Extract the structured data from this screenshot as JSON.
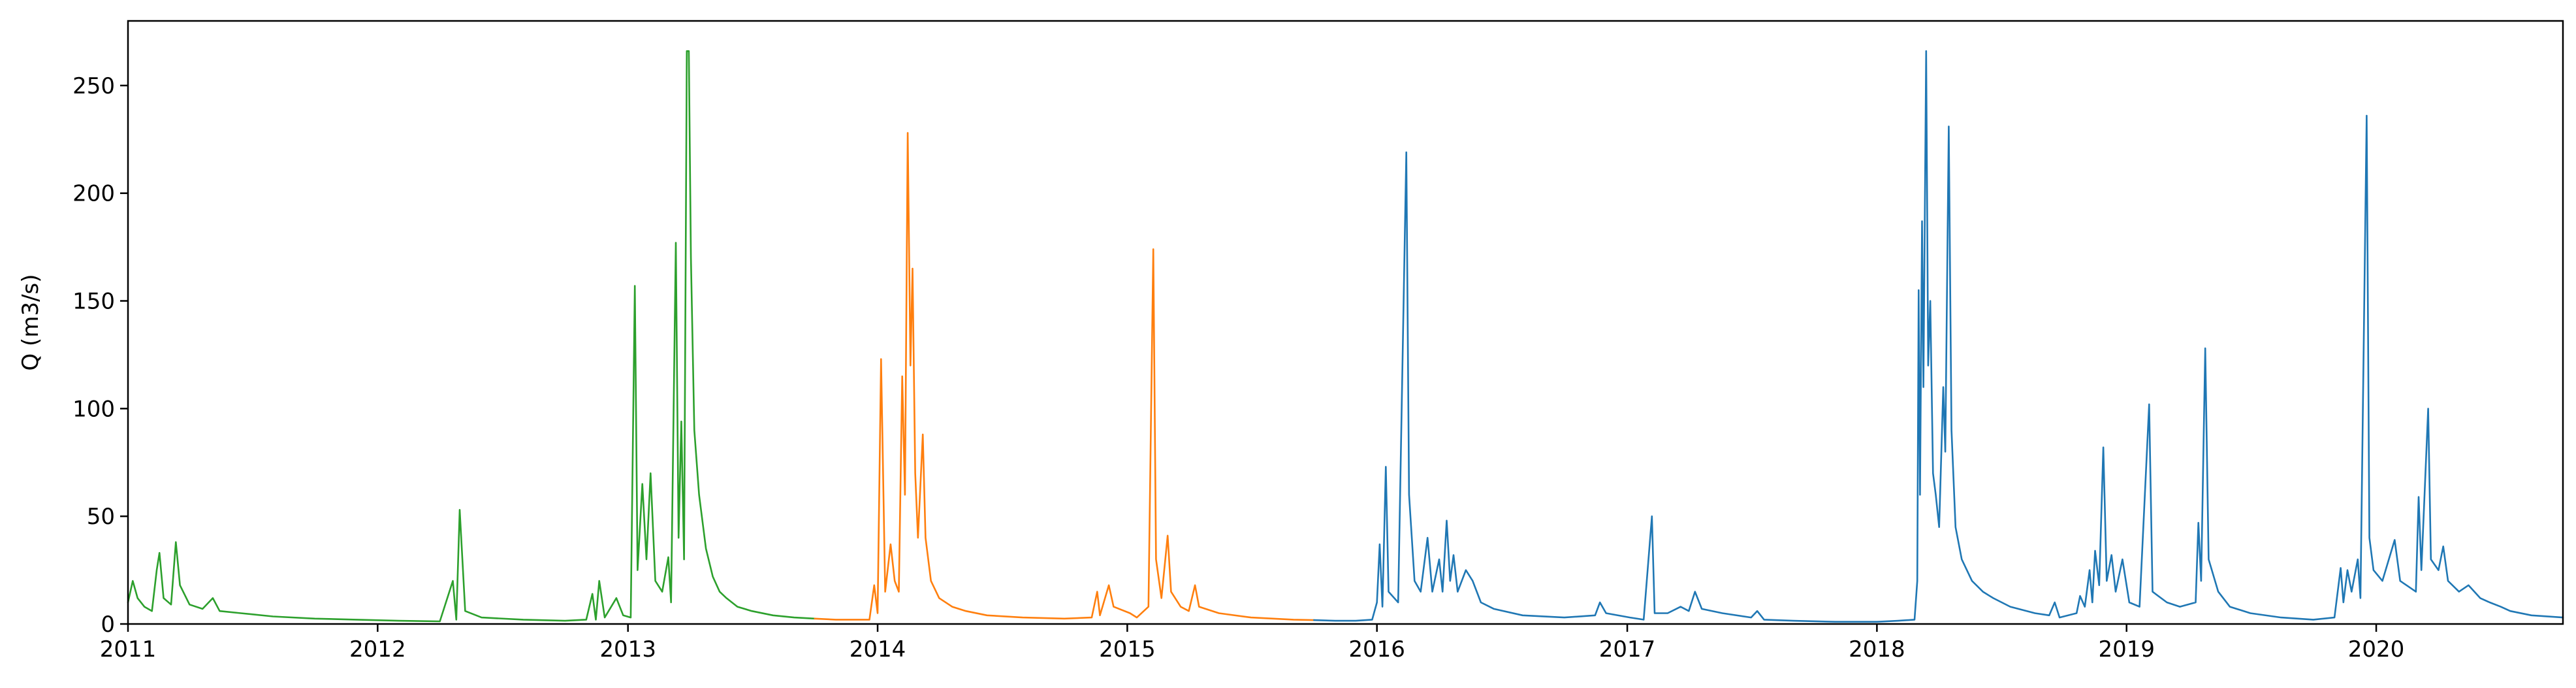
{
  "chart_data": {
    "type": "line",
    "title": "",
    "xlabel": "",
    "ylabel": "Q (m3/s)",
    "xlim": [
      "2011-01-01",
      "2020-09-30"
    ],
    "ylim": [
      0,
      280
    ],
    "grid": false,
    "legend": "none",
    "x_ticks": [
      "2011",
      "2012",
      "2013",
      "2014",
      "2015",
      "2016",
      "2017",
      "2018",
      "2019",
      "2020"
    ],
    "y_ticks": [
      0,
      50,
      100,
      150,
      200,
      250
    ],
    "series": [
      {
        "color": "#2ca02c",
        "points": [
          [
            "2011-01-01",
            10
          ],
          [
            "2011-01-08",
            20
          ],
          [
            "2011-01-15",
            12
          ],
          [
            "2011-01-25",
            8
          ],
          [
            "2011-02-05",
            6
          ],
          [
            "2011-02-12",
            25
          ],
          [
            "2011-02-16",
            33
          ],
          [
            "2011-02-22",
            12
          ],
          [
            "2011-03-05",
            9
          ],
          [
            "2011-03-12",
            38
          ],
          [
            "2011-03-18",
            18
          ],
          [
            "2011-04-01",
            9
          ],
          [
            "2011-04-20",
            7
          ],
          [
            "2011-05-05",
            12
          ],
          [
            "2011-05-15",
            6
          ],
          [
            "2011-06-15",
            5
          ],
          [
            "2011-08-01",
            3.5
          ],
          [
            "2011-10-01",
            2.5
          ],
          [
            "2011-12-01",
            2
          ],
          [
            "2012-02-01",
            1.5
          ],
          [
            "2012-04-01",
            1.2
          ],
          [
            "2012-04-20",
            20
          ],
          [
            "2012-04-25",
            2
          ],
          [
            "2012-04-30",
            53
          ],
          [
            "2012-05-08",
            6
          ],
          [
            "2012-06-01",
            3
          ],
          [
            "2012-08-01",
            2
          ],
          [
            "2012-10-01",
            1.5
          ],
          [
            "2012-11-01",
            2
          ],
          [
            "2012-11-10",
            14
          ],
          [
            "2012-11-15",
            2
          ],
          [
            "2012-11-20",
            20
          ],
          [
            "2012-11-28",
            3
          ],
          [
            "2012-12-15",
            12
          ],
          [
            "2012-12-25",
            4
          ],
          [
            "2013-01-05",
            3
          ],
          [
            "2013-01-11",
            157
          ],
          [
            "2013-01-15",
            25
          ],
          [
            "2013-01-22",
            65
          ],
          [
            "2013-01-28",
            30
          ],
          [
            "2013-02-03",
            70
          ],
          [
            "2013-02-10",
            20
          ],
          [
            "2013-02-20",
            15
          ],
          [
            "2013-03-01",
            31
          ],
          [
            "2013-03-05",
            10
          ],
          [
            "2013-03-12",
            177
          ],
          [
            "2013-03-16",
            40
          ],
          [
            "2013-03-20",
            94
          ],
          [
            "2013-03-24",
            30
          ],
          [
            "2013-03-28",
            266
          ],
          [
            "2013-03-31",
            266
          ],
          [
            "2013-04-03",
            170
          ],
          [
            "2013-04-08",
            90
          ],
          [
            "2013-04-15",
            60
          ],
          [
            "2013-04-25",
            35
          ],
          [
            "2013-05-05",
            22
          ],
          [
            "2013-05-15",
            15
          ],
          [
            "2013-05-25",
            12
          ],
          [
            "2013-06-10",
            8
          ],
          [
            "2013-07-01",
            6
          ],
          [
            "2013-08-01",
            4
          ],
          [
            "2013-09-01",
            3
          ],
          [
            "2013-10-01",
            2.5
          ]
        ]
      },
      {
        "color": "#ff7f0e",
        "points": [
          [
            "2013-10-01",
            2.5
          ],
          [
            "2013-11-01",
            2
          ],
          [
            "2013-12-01",
            2
          ],
          [
            "2013-12-20",
            2
          ],
          [
            "2013-12-27",
            18
          ],
          [
            "2014-01-01",
            5
          ],
          [
            "2014-01-06",
            123
          ],
          [
            "2014-01-12",
            15
          ],
          [
            "2014-01-20",
            37
          ],
          [
            "2014-01-26",
            20
          ],
          [
            "2014-02-01",
            15
          ],
          [
            "2014-02-06",
            115
          ],
          [
            "2014-02-10",
            60
          ],
          [
            "2014-02-14",
            228
          ],
          [
            "2014-02-18",
            120
          ],
          [
            "2014-02-21",
            165
          ],
          [
            "2014-02-25",
            70
          ],
          [
            "2014-03-01",
            40
          ],
          [
            "2014-03-08",
            88
          ],
          [
            "2014-03-12",
            40
          ],
          [
            "2014-03-20",
            20
          ],
          [
            "2014-04-01",
            12
          ],
          [
            "2014-04-20",
            8
          ],
          [
            "2014-05-10",
            6
          ],
          [
            "2014-06-10",
            4
          ],
          [
            "2014-08-01",
            3
          ],
          [
            "2014-10-01",
            2.5
          ],
          [
            "2014-11-10",
            3
          ],
          [
            "2014-11-18",
            15
          ],
          [
            "2014-11-22",
            4
          ],
          [
            "2014-12-05",
            18
          ],
          [
            "2014-12-12",
            8
          ],
          [
            "2015-01-05",
            5
          ],
          [
            "2015-01-15",
            3
          ],
          [
            "2015-02-01",
            8
          ],
          [
            "2015-02-08",
            174
          ],
          [
            "2015-02-12",
            30
          ],
          [
            "2015-02-20",
            12
          ],
          [
            "2015-03-01",
            41
          ],
          [
            "2015-03-06",
            15
          ],
          [
            "2015-03-20",
            8
          ],
          [
            "2015-04-01",
            6
          ],
          [
            "2015-04-10",
            18
          ],
          [
            "2015-04-16",
            8
          ],
          [
            "2015-05-15",
            5
          ],
          [
            "2015-07-01",
            3
          ],
          [
            "2015-09-01",
            2
          ],
          [
            "2015-10-01",
            1.8
          ]
        ]
      },
      {
        "color": "#1f77b4",
        "points": [
          [
            "2015-10-01",
            1.8
          ],
          [
            "2015-11-01",
            1.5
          ],
          [
            "2015-12-01",
            1.5
          ],
          [
            "2015-12-25",
            2
          ],
          [
            "2016-01-01",
            10
          ],
          [
            "2016-01-05",
            37
          ],
          [
            "2016-01-09",
            8
          ],
          [
            "2016-01-14",
            73
          ],
          [
            "2016-01-18",
            15
          ],
          [
            "2016-02-01",
            10
          ],
          [
            "2016-02-13",
            219
          ],
          [
            "2016-02-17",
            60
          ],
          [
            "2016-02-25",
            20
          ],
          [
            "2016-03-05",
            15
          ],
          [
            "2016-03-15",
            40
          ],
          [
            "2016-03-22",
            15
          ],
          [
            "2016-04-01",
            30
          ],
          [
            "2016-04-06",
            15
          ],
          [
            "2016-04-12",
            48
          ],
          [
            "2016-04-17",
            20
          ],
          [
            "2016-04-22",
            32
          ],
          [
            "2016-04-28",
            15
          ],
          [
            "2016-05-10",
            25
          ],
          [
            "2016-05-20",
            20
          ],
          [
            "2016-06-01",
            10
          ],
          [
            "2016-06-20",
            7
          ],
          [
            "2016-08-01",
            4
          ],
          [
            "2016-10-01",
            3
          ],
          [
            "2016-11-15",
            4
          ],
          [
            "2016-11-22",
            10
          ],
          [
            "2016-12-01",
            5
          ],
          [
            "2017-01-05",
            3
          ],
          [
            "2017-01-25",
            2
          ],
          [
            "2017-02-06",
            50
          ],
          [
            "2017-02-10",
            5
          ],
          [
            "2017-03-01",
            5
          ],
          [
            "2017-03-20",
            8
          ],
          [
            "2017-04-01",
            6
          ],
          [
            "2017-04-10",
            15
          ],
          [
            "2017-04-20",
            7
          ],
          [
            "2017-05-20",
            5
          ],
          [
            "2017-07-01",
            3
          ],
          [
            "2017-07-10",
            6
          ],
          [
            "2017-07-20",
            2
          ],
          [
            "2017-09-01",
            1.5
          ],
          [
            "2017-11-01",
            1
          ],
          [
            "2018-01-01",
            1
          ],
          [
            "2018-02-01",
            1.5
          ],
          [
            "2018-02-25",
            2
          ],
          [
            "2018-03-01",
            20
          ],
          [
            "2018-03-03",
            155
          ],
          [
            "2018-03-05",
            60
          ],
          [
            "2018-03-08",
            187
          ],
          [
            "2018-03-10",
            110
          ],
          [
            "2018-03-14",
            266
          ],
          [
            "2018-03-17",
            120
          ],
          [
            "2018-03-20",
            150
          ],
          [
            "2018-03-24",
            70
          ],
          [
            "2018-03-28",
            60
          ],
          [
            "2018-04-02",
            45
          ],
          [
            "2018-04-08",
            110
          ],
          [
            "2018-04-11",
            80
          ],
          [
            "2018-04-16",
            231
          ],
          [
            "2018-04-20",
            90
          ],
          [
            "2018-04-26",
            45
          ],
          [
            "2018-05-05",
            30
          ],
          [
            "2018-05-20",
            20
          ],
          [
            "2018-06-05",
            15
          ],
          [
            "2018-06-20",
            12
          ],
          [
            "2018-07-15",
            8
          ],
          [
            "2018-08-20",
            5
          ],
          [
            "2018-09-10",
            4
          ],
          [
            "2018-09-18",
            10
          ],
          [
            "2018-09-25",
            3
          ],
          [
            "2018-10-20",
            5
          ],
          [
            "2018-10-25",
            13
          ],
          [
            "2018-11-01",
            8
          ],
          [
            "2018-11-08",
            25
          ],
          [
            "2018-11-12",
            10
          ],
          [
            "2018-11-16",
            34
          ],
          [
            "2018-11-22",
            18
          ],
          [
            "2018-11-28",
            82
          ],
          [
            "2018-12-03",
            20
          ],
          [
            "2018-12-10",
            32
          ],
          [
            "2018-12-16",
            15
          ],
          [
            "2018-12-26",
            30
          ],
          [
            "2019-01-05",
            10
          ],
          [
            "2019-01-20",
            8
          ],
          [
            "2019-02-03",
            102
          ],
          [
            "2019-02-08",
            15
          ],
          [
            "2019-03-01",
            10
          ],
          [
            "2019-03-20",
            8
          ],
          [
            "2019-04-12",
            10
          ],
          [
            "2019-04-16",
            47
          ],
          [
            "2019-04-20",
            20
          ],
          [
            "2019-04-26",
            128
          ],
          [
            "2019-05-01",
            30
          ],
          [
            "2019-05-15",
            15
          ],
          [
            "2019-06-01",
            8
          ],
          [
            "2019-07-01",
            5
          ],
          [
            "2019-08-15",
            3
          ],
          [
            "2019-10-01",
            2
          ],
          [
            "2019-11-01",
            3
          ],
          [
            "2019-11-10",
            26
          ],
          [
            "2019-11-14",
            10
          ],
          [
            "2019-11-20",
            25
          ],
          [
            "2019-11-26",
            15
          ],
          [
            "2019-12-05",
            30
          ],
          [
            "2019-12-09",
            12
          ],
          [
            "2019-12-18",
            236
          ],
          [
            "2019-12-22",
            40
          ],
          [
            "2019-12-28",
            25
          ],
          [
            "2020-01-10",
            20
          ],
          [
            "2020-01-28",
            39
          ],
          [
            "2020-02-05",
            20
          ],
          [
            "2020-02-28",
            15
          ],
          [
            "2020-03-03",
            59
          ],
          [
            "2020-03-07",
            25
          ],
          [
            "2020-03-17",
            100
          ],
          [
            "2020-03-21",
            30
          ],
          [
            "2020-04-01",
            25
          ],
          [
            "2020-04-08",
            36
          ],
          [
            "2020-04-15",
            20
          ],
          [
            "2020-05-01",
            15
          ],
          [
            "2020-05-15",
            18
          ],
          [
            "2020-06-01",
            12
          ],
          [
            "2020-06-15",
            10
          ],
          [
            "2020-07-01",
            8
          ],
          [
            "2020-07-15",
            6
          ],
          [
            "2020-08-15",
            4
          ],
          [
            "2020-09-30",
            3
          ]
        ]
      }
    ]
  }
}
